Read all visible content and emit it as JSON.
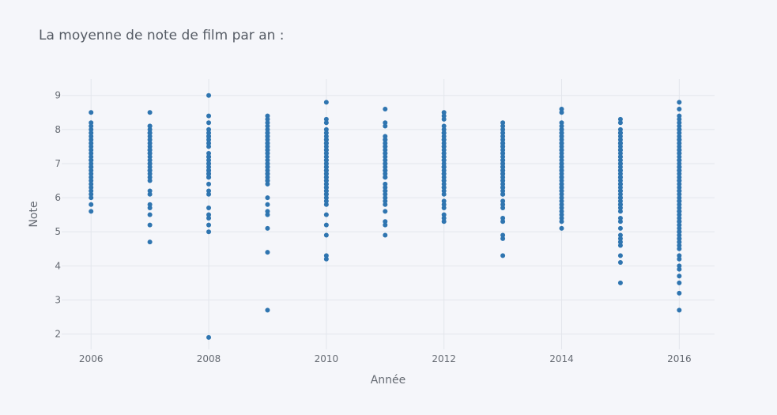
{
  "chart_data": {
    "type": "scatter",
    "title": "La moyenne de note de film par an :",
    "xlabel": "Année",
    "ylabel": "Note",
    "xlim": [
      2005.5,
      2016.6
    ],
    "ylim": [
      1.55,
      9.48
    ],
    "x_ticks": [
      2006,
      2008,
      2010,
      2012,
      2014,
      2016
    ],
    "y_ticks": [
      2,
      3,
      4,
      5,
      6,
      7,
      8,
      9
    ],
    "grid": true,
    "legend": "none",
    "colors": {
      "background": "#f5f6fa",
      "grid": "#e3e6ec",
      "marker": "#2f75b0"
    },
    "series": [
      {
        "x": [
          2006,
          2006,
          2006,
          2006,
          2006,
          2006,
          2006,
          2006,
          2006,
          2006,
          2006,
          2006,
          2006,
          2006,
          2006,
          2006,
          2006,
          2006,
          2006,
          2006,
          2006,
          2006,
          2006,
          2006,
          2006,
          2006,
          2006,
          2006,
          2007,
          2007,
          2007,
          2007,
          2007,
          2007,
          2007,
          2007,
          2007,
          2007,
          2007,
          2007,
          2007,
          2007,
          2007,
          2007,
          2007,
          2007,
          2007,
          2007,
          2007,
          2007,
          2007,
          2007,
          2007,
          2007,
          2007,
          2007,
          2007,
          2007,
          2007,
          2008,
          2008,
          2008,
          2008,
          2008,
          2008,
          2008,
          2008,
          2008,
          2008,
          2008,
          2008,
          2008,
          2008,
          2008,
          2008,
          2008,
          2008,
          2008,
          2008,
          2008,
          2008,
          2008,
          2008,
          2008,
          2008,
          2008,
          2008,
          2008,
          2008,
          2008,
          2008,
          2009,
          2009,
          2009,
          2009,
          2009,
          2009,
          2009,
          2009,
          2009,
          2009,
          2009,
          2009,
          2009,
          2009,
          2009,
          2009,
          2009,
          2009,
          2009,
          2009,
          2009,
          2009,
          2009,
          2009,
          2009,
          2009,
          2009,
          2009,
          2009,
          2009,
          2009,
          2009,
          2009,
          2009,
          2009,
          2009,
          2009,
          2009,
          2010,
          2010,
          2010,
          2010,
          2010,
          2010,
          2010,
          2010,
          2010,
          2010,
          2010,
          2010,
          2010,
          2010,
          2010,
          2010,
          2010,
          2010,
          2010,
          2010,
          2010,
          2010,
          2010,
          2010,
          2010,
          2010,
          2010,
          2010,
          2010,
          2010,
          2010,
          2010,
          2010,
          2010,
          2010,
          2010,
          2010,
          2010,
          2010,
          2010,
          2010,
          2010,
          2010,
          2010,
          2010,
          2010,
          2010,
          2011,
          2011,
          2011,
          2011,
          2011,
          2011,
          2011,
          2011,
          2011,
          2011,
          2011,
          2011,
          2011,
          2011,
          2011,
          2011,
          2011,
          2011,
          2011,
          2011,
          2011,
          2011,
          2011,
          2011,
          2011,
          2011,
          2011,
          2011,
          2011,
          2011,
          2011,
          2011,
          2011,
          2011,
          2012,
          2012,
          2012,
          2012,
          2012,
          2012,
          2012,
          2012,
          2012,
          2012,
          2012,
          2012,
          2012,
          2012,
          2012,
          2012,
          2012,
          2012,
          2012,
          2012,
          2012,
          2012,
          2012,
          2012,
          2012,
          2012,
          2012,
          2012,
          2012,
          2012,
          2012,
          2012,
          2012,
          2012,
          2012,
          2012,
          2012,
          2012,
          2012,
          2012,
          2012,
          2013,
          2013,
          2013,
          2013,
          2013,
          2013,
          2013,
          2013,
          2013,
          2013,
          2013,
          2013,
          2013,
          2013,
          2013,
          2013,
          2013,
          2013,
          2013,
          2013,
          2013,
          2013,
          2013,
          2013,
          2013,
          2013,
          2013,
          2013,
          2013,
          2013,
          2013,
          2013,
          2013,
          2013,
          2013,
          2013,
          2013,
          2013,
          2013,
          2013,
          2013,
          2014,
          2014,
          2014,
          2014,
          2014,
          2014,
          2014,
          2014,
          2014,
          2014,
          2014,
          2014,
          2014,
          2014,
          2014,
          2014,
          2014,
          2014,
          2014,
          2014,
          2014,
          2014,
          2014,
          2014,
          2014,
          2014,
          2014,
          2014,
          2014,
          2014,
          2014,
          2014,
          2014,
          2014,
          2014,
          2014,
          2014,
          2014,
          2014,
          2014,
          2014,
          2014,
          2014,
          2014,
          2014,
          2014,
          2015,
          2015,
          2015,
          2015,
          2015,
          2015,
          2015,
          2015,
          2015,
          2015,
          2015,
          2015,
          2015,
          2015,
          2015,
          2015,
          2015,
          2015,
          2015,
          2015,
          2015,
          2015,
          2015,
          2015,
          2015,
          2015,
          2015,
          2015,
          2015,
          2015,
          2015,
          2015,
          2015,
          2015,
          2015,
          2015,
          2015,
          2015,
          2015,
          2015,
          2015,
          2015,
          2015,
          2015,
          2015,
          2015,
          2015,
          2015,
          2016,
          2016,
          2016,
          2016,
          2016,
          2016,
          2016,
          2016,
          2016,
          2016,
          2016,
          2016,
          2016,
          2016,
          2016,
          2016,
          2016,
          2016,
          2016,
          2016,
          2016,
          2016,
          2016,
          2016,
          2016,
          2016,
          2016,
          2016,
          2016,
          2016,
          2016,
          2016,
          2016,
          2016,
          2016,
          2016,
          2016,
          2016,
          2016,
          2016,
          2016,
          2016,
          2016,
          2016,
          2016,
          2016,
          2016,
          2016,
          2016,
          2016,
          2016,
          2016,
          2016,
          2016,
          2016,
          2016,
          2016,
          2016,
          2016,
          2016,
          2016,
          2016,
          2016,
          2016
        ],
        "y": [
          8.5,
          8.2,
          8.0,
          7.9,
          7.8,
          7.7,
          7.6,
          7.5,
          7.3,
          7.2,
          7.1,
          7.0,
          6.9,
          6.8,
          6.7,
          6.6,
          6.5,
          6.4,
          6.1,
          6.0,
          5.8,
          5.6,
          7.4,
          8.1,
          6.2,
          6.3,
          6.9,
          7.1,
          8.5,
          8.1,
          8.0,
          7.9,
          7.8,
          7.7,
          7.6,
          7.5,
          7.4,
          7.3,
          7.2,
          7.1,
          7.0,
          6.9,
          6.8,
          6.7,
          6.5,
          6.2,
          6.1,
          5.8,
          5.7,
          5.5,
          5.2,
          4.7,
          8.1,
          7.9,
          7.4,
          7.3,
          7.0,
          6.8,
          6.6,
          9.0,
          8.4,
          8.2,
          8.0,
          7.9,
          7.8,
          7.7,
          7.6,
          7.3,
          7.2,
          7.1,
          7.0,
          6.9,
          6.8,
          6.7,
          6.6,
          6.4,
          6.2,
          6.1,
          5.7,
          5.5,
          5.2,
          5.0,
          1.9,
          7.8,
          7.0,
          6.7,
          6.6,
          7.2,
          6.8,
          7.5,
          5.4,
          8.4,
          8.3,
          8.1,
          8.0,
          7.9,
          7.8,
          7.7,
          7.6,
          7.5,
          7.4,
          7.3,
          7.1,
          7.0,
          6.9,
          6.8,
          6.7,
          6.6,
          6.5,
          6.4,
          6.0,
          5.8,
          5.6,
          5.5,
          5.1,
          4.4,
          2.7,
          8.2,
          7.8,
          7.6,
          7.4,
          7.0,
          6.9,
          6.7,
          6.5,
          7.2,
          7.5,
          7.3,
          7.9,
          8.8,
          8.3,
          8.2,
          8.0,
          7.9,
          7.8,
          7.7,
          7.6,
          7.5,
          7.4,
          7.3,
          7.2,
          7.1,
          7.0,
          6.9,
          6.8,
          6.7,
          6.6,
          6.5,
          6.4,
          6.3,
          6.2,
          6.1,
          6.0,
          5.9,
          5.8,
          5.5,
          5.2,
          4.9,
          4.3,
          4.2,
          7.7,
          7.6,
          7.4,
          7.2,
          7.0,
          6.9,
          6.8,
          6.6,
          6.5,
          6.3,
          6.1,
          7.3,
          7.1,
          6.7,
          6.4,
          6.2,
          8.6,
          8.2,
          8.1,
          7.8,
          7.7,
          7.6,
          7.5,
          7.4,
          7.3,
          7.2,
          7.1,
          7.0,
          6.9,
          6.8,
          6.7,
          6.6,
          6.4,
          6.3,
          6.2,
          6.1,
          6.0,
          5.9,
          5.8,
          5.6,
          5.3,
          5.2,
          4.9,
          7.7,
          7.5,
          7.3,
          7.0,
          6.8,
          6.6,
          6.2,
          8.5,
          8.3,
          8.1,
          8.0,
          7.9,
          7.8,
          7.7,
          7.6,
          7.5,
          7.4,
          7.3,
          7.2,
          7.1,
          7.0,
          6.9,
          6.8,
          6.7,
          6.6,
          6.5,
          6.4,
          6.3,
          6.2,
          6.1,
          5.9,
          5.8,
          5.7,
          5.5,
          5.4,
          5.3,
          7.9,
          7.7,
          7.5,
          7.3,
          7.1,
          6.9,
          6.7,
          6.5,
          6.3,
          6.9,
          7.2,
          8.4,
          8.2,
          8.1,
          8.0,
          7.9,
          7.8,
          7.7,
          7.6,
          7.5,
          7.4,
          7.3,
          7.2,
          7.1,
          7.0,
          6.9,
          6.8,
          6.7,
          6.6,
          6.5,
          6.4,
          6.3,
          6.2,
          6.1,
          5.9,
          5.8,
          5.7,
          5.4,
          5.3,
          4.9,
          4.8,
          4.3,
          7.5,
          7.3,
          7.1,
          6.9,
          6.7,
          6.5,
          6.3,
          6.1,
          6.8,
          7.0,
          7.6,
          8.6,
          8.5,
          8.2,
          8.1,
          8.0,
          7.9,
          7.8,
          7.7,
          7.6,
          7.5,
          7.4,
          7.3,
          7.2,
          7.1,
          7.0,
          6.9,
          6.8,
          6.7,
          6.6,
          6.5,
          6.4,
          6.3,
          6.2,
          6.1,
          6.0,
          5.9,
          5.8,
          5.7,
          5.6,
          5.5,
          5.4,
          5.3,
          5.1,
          8.0,
          7.8,
          7.6,
          7.4,
          7.2,
          7.0,
          6.8,
          6.6,
          6.4,
          6.2,
          7.9,
          6.9,
          6.3,
          8.3,
          8.2,
          8.0,
          7.9,
          7.8,
          7.7,
          7.6,
          7.5,
          7.4,
          7.3,
          7.2,
          7.1,
          7.0,
          6.9,
          6.8,
          6.7,
          6.6,
          6.5,
          6.4,
          6.3,
          6.2,
          6.1,
          6.0,
          5.9,
          5.8,
          5.7,
          5.6,
          5.4,
          5.3,
          5.1,
          4.9,
          4.8,
          4.7,
          4.6,
          4.3,
          4.1,
          3.5,
          7.9,
          7.6,
          7.4,
          7.2,
          7.0,
          6.8,
          6.6,
          6.4,
          6.2,
          6.0,
          5.8,
          8.8,
          8.6,
          8.4,
          8.3,
          8.2,
          8.1,
          8.0,
          7.9,
          7.8,
          7.7,
          7.6,
          7.5,
          7.4,
          7.3,
          7.2,
          7.1,
          7.0,
          6.9,
          6.8,
          6.7,
          6.6,
          6.5,
          6.4,
          6.3,
          6.2,
          6.1,
          6.0,
          5.9,
          5.8,
          5.7,
          5.6,
          5.5,
          5.4,
          5.3,
          5.2,
          5.1,
          5.0,
          4.9,
          4.8,
          4.7,
          4.6,
          4.5,
          4.3,
          4.2,
          4.0,
          3.9,
          3.7,
          3.5,
          3.2,
          2.7,
          8.0,
          7.7,
          7.4,
          7.1,
          6.8,
          6.5,
          6.2,
          5.9,
          5.6,
          5.3,
          5.0,
          4.8,
          6.9,
          7.3
        ]
      }
    ]
  }
}
